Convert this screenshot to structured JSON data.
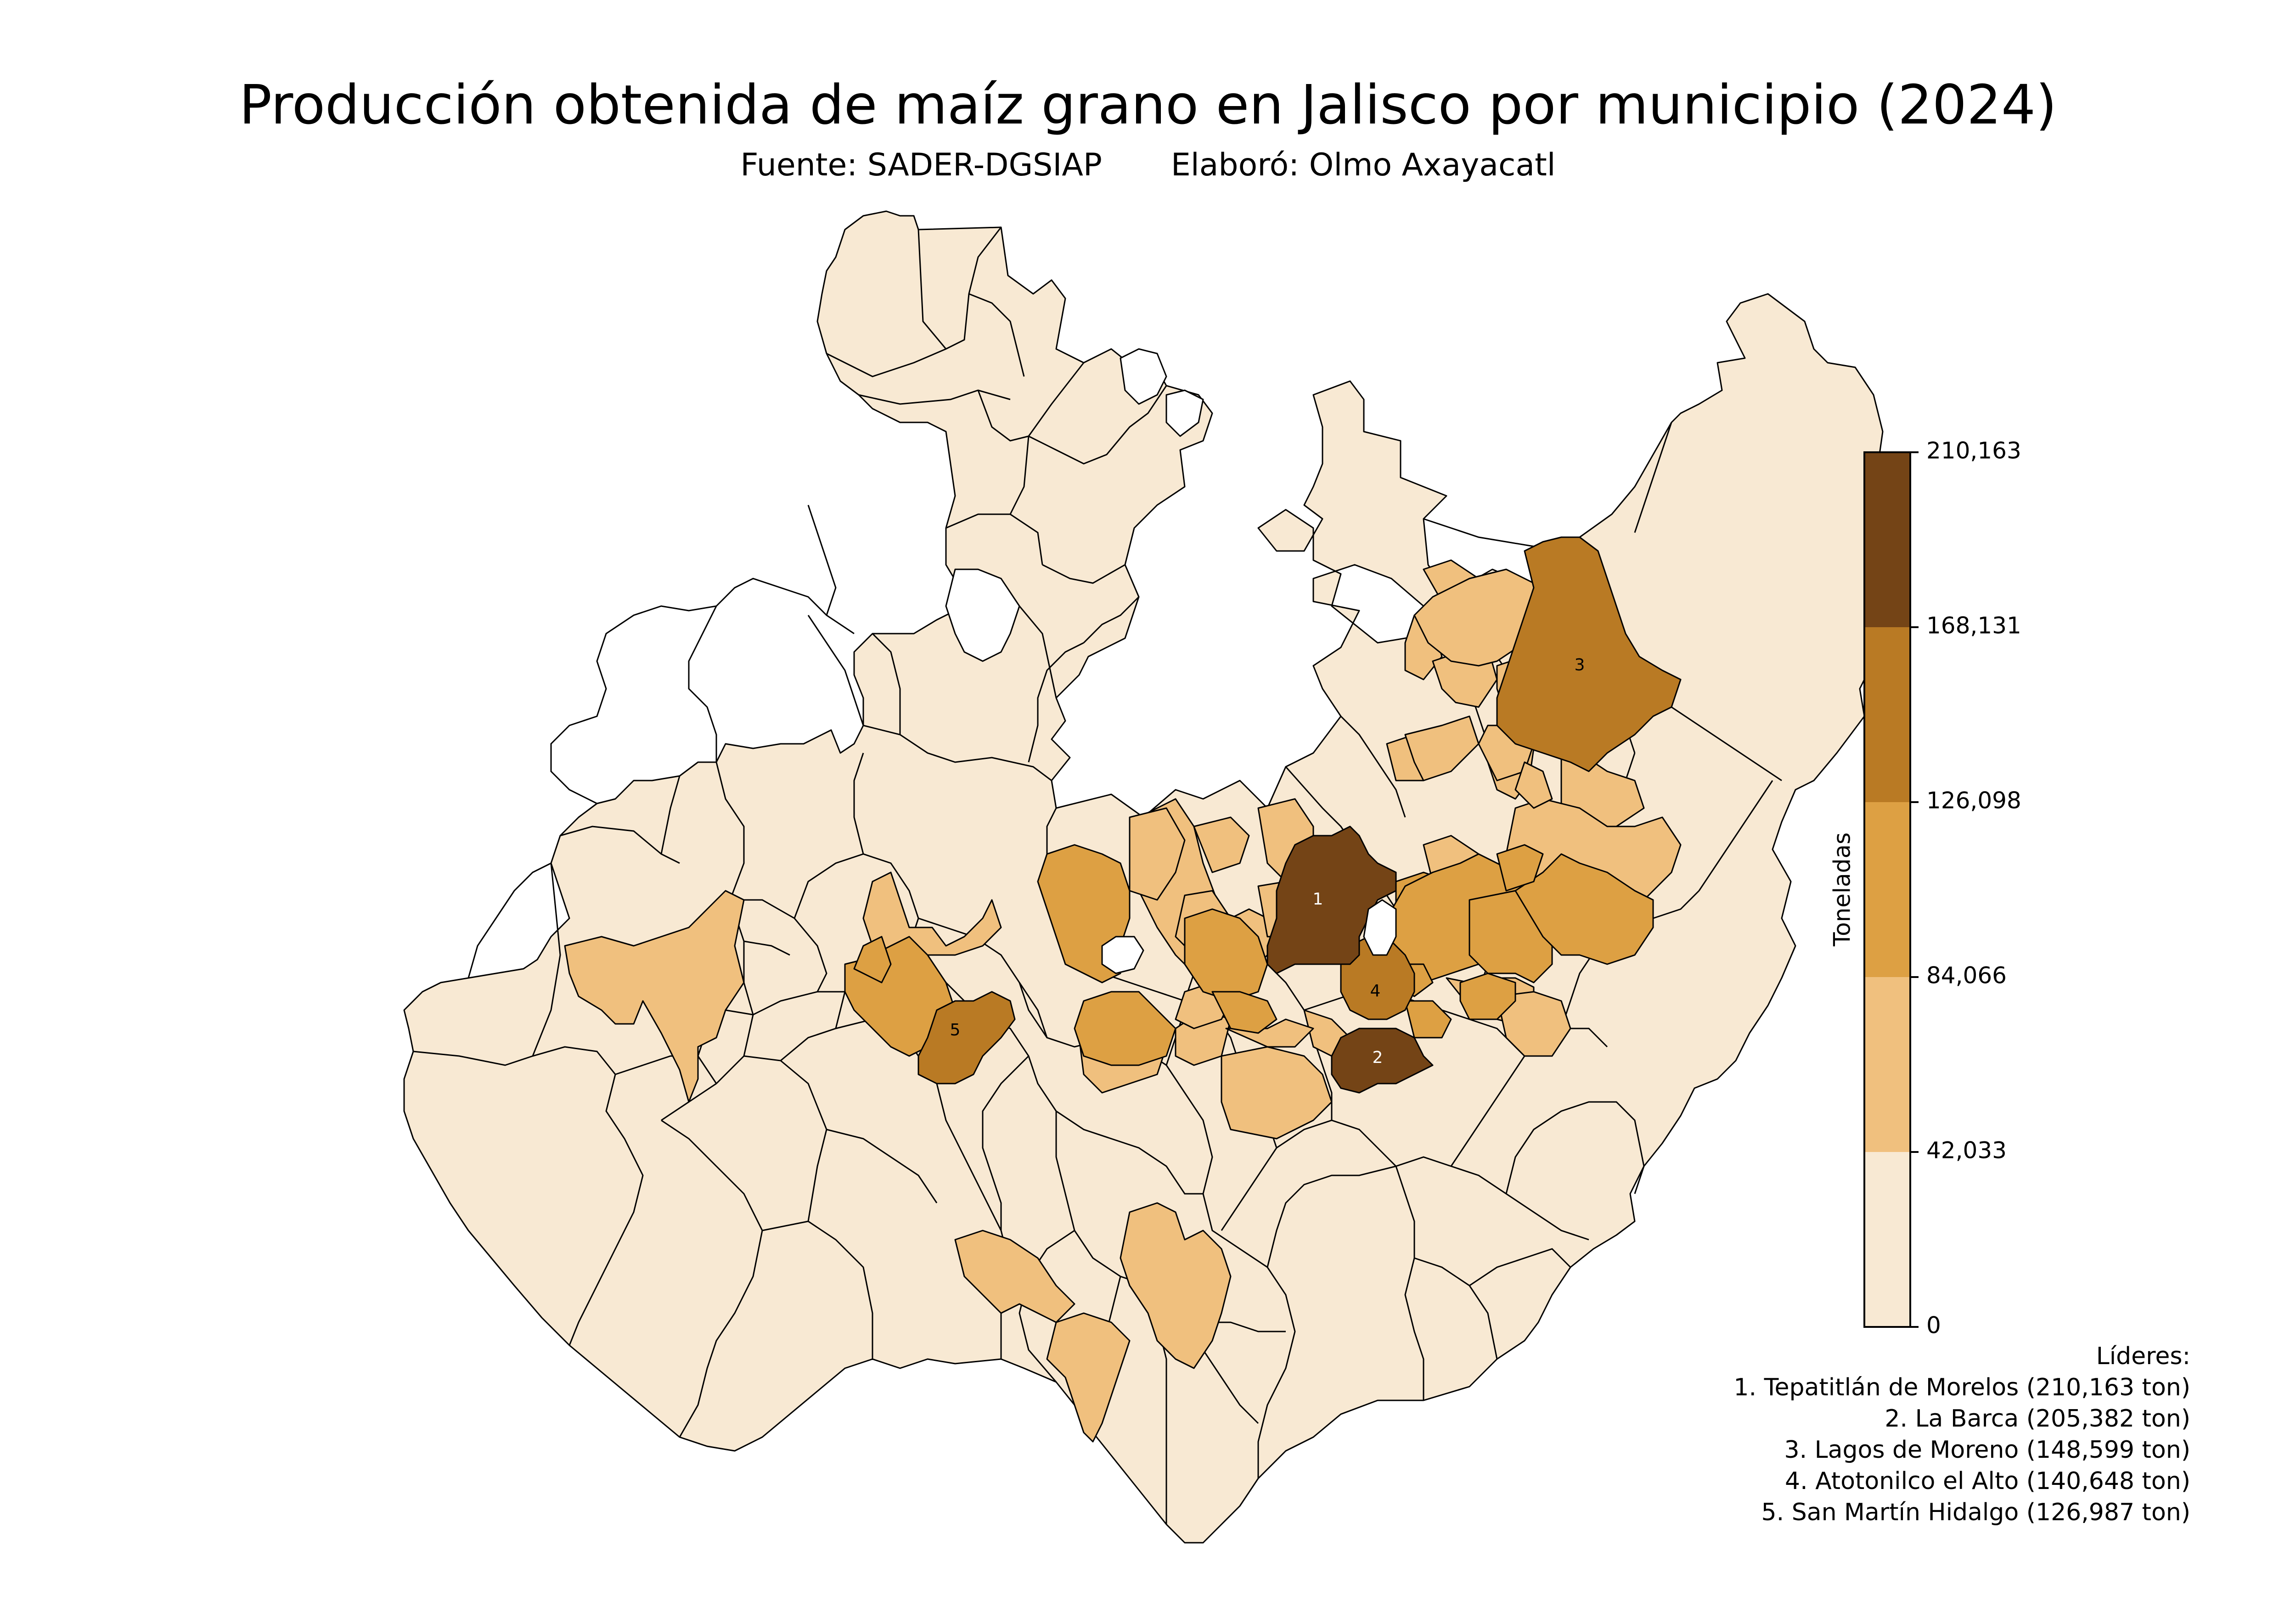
{
  "title": "Producción obtenida de maíz grano en Jalisco por municipio (2024)",
  "subtitle": {
    "source": "Fuente: SADER-DGSIAP",
    "author": "Elaboró: Olmo Axayacatl"
  },
  "colors": {
    "class_1": "#f8e9d3",
    "class_2": "#f0c07e",
    "class_3": "#dda043",
    "class_4": "#b97a24",
    "class_5": "#744416",
    "no_data": "#ffffff",
    "border": "#000000"
  },
  "colorbar": {
    "label": "Toneladas",
    "ticks": [
      "0",
      "42,033",
      "84,066",
      "126,098",
      "168,131",
      "210,163"
    ]
  },
  "leaders": {
    "heading": "Líderes:",
    "items": [
      {
        "rank": "1",
        "text": "1. Tepatitlán de Morelos (210,163 ton)"
      },
      {
        "rank": "2",
        "text": "2. La Barca (205,382 ton)"
      },
      {
        "rank": "3",
        "text": "3. Lagos de Moreno (148,599 ton)"
      },
      {
        "rank": "4",
        "text": "4. Atotonilco el Alto (140,648 ton)"
      },
      {
        "rank": "5",
        "text": "5. San Martín Hidalgo (126,987 ton)"
      }
    ]
  }
}
